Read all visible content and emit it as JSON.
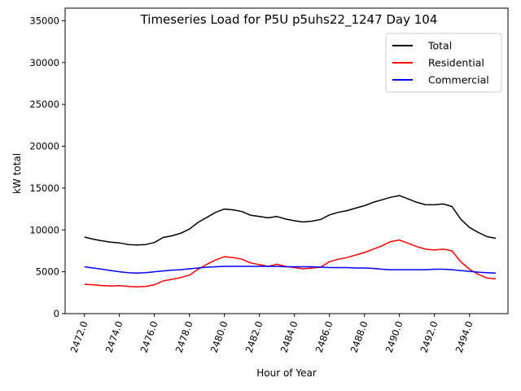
{
  "chart_data": {
    "type": "line",
    "title": "Timeseries Load for P5U p5uhs22_1247  Day 104",
    "xlabel": "Hour of Year",
    "ylabel": "kW total",
    "xlim": [
      2470.9,
      2496.2
    ],
    "ylim": [
      0,
      36500
    ],
    "xticks": [
      2472.0,
      2474.0,
      2476.0,
      2478.0,
      2480.0,
      2482.0,
      2484.0,
      2486.0,
      2488.0,
      2490.0,
      2492.0,
      2494.0
    ],
    "xtick_labels": [
      "2472.0",
      "2474.0",
      "2476.0",
      "2478.0",
      "2480.0",
      "2482.0",
      "2484.0",
      "2486.0",
      "2488.0",
      "2490.0",
      "2492.0",
      "2494.0"
    ],
    "yticks": [
      0,
      5000,
      10000,
      15000,
      20000,
      25000,
      30000,
      35000
    ],
    "ytick_labels": [
      "0",
      "5000",
      "10000",
      "15000",
      "20000",
      "25000",
      "30000",
      "35000"
    ],
    "legend_position": "top-right",
    "x": [
      2472,
      2472.5,
      2473,
      2473.5,
      2474,
      2474.5,
      2475,
      2475.5,
      2476,
      2476.5,
      2477,
      2477.5,
      2478,
      2478.5,
      2479,
      2479.5,
      2480,
      2480.5,
      2481,
      2481.5,
      2482,
      2482.5,
      2483,
      2483.5,
      2484,
      2484.5,
      2485,
      2485.5,
      2486,
      2486.5,
      2487,
      2487.5,
      2488,
      2488.5,
      2489,
      2489.5,
      2490,
      2490.5,
      2491,
      2491.5,
      2492,
      2492.5,
      2493,
      2493.5,
      2494,
      2494.5,
      2495,
      2495.5
    ],
    "series": [
      {
        "name": "Total",
        "color": "#000000",
        "values": [
          9150,
          8900,
          8700,
          8550,
          8450,
          8250,
          8200,
          8250,
          8500,
          9100,
          9300,
          9600,
          10100,
          10900,
          11500,
          12100,
          12500,
          12400,
          12200,
          11750,
          11600,
          11450,
          11600,
          11300,
          11100,
          10950,
          11050,
          11250,
          11800,
          12100,
          12300,
          12600,
          12900,
          13300,
          13600,
          13900,
          14100,
          13700,
          13300,
          13000,
          13000,
          13100,
          12800,
          11300,
          10300,
          9700,
          9200,
          9000
        ]
      },
      {
        "name": "Residential",
        "color": "#ff0000",
        "values": [
          3500,
          3450,
          3350,
          3300,
          3350,
          3250,
          3200,
          3250,
          3450,
          3900,
          4100,
          4300,
          4600,
          5300,
          5900,
          6400,
          6800,
          6700,
          6500,
          6050,
          5850,
          5650,
          5900,
          5650,
          5500,
          5350,
          5450,
          5550,
          6200,
          6500,
          6700,
          7000,
          7300,
          7700,
          8100,
          8600,
          8800,
          8400,
          8000,
          7700,
          7600,
          7700,
          7500,
          6200,
          5300,
          4700,
          4250,
          4150
        ]
      },
      {
        "name": "Commercial",
        "color": "#0000ff",
        "values": [
          5600,
          5450,
          5300,
          5150,
          5000,
          4900,
          4850,
          4900,
          5000,
          5100,
          5200,
          5250,
          5350,
          5450,
          5550,
          5600,
          5650,
          5650,
          5650,
          5650,
          5650,
          5650,
          5650,
          5600,
          5600,
          5600,
          5600,
          5550,
          5500,
          5500,
          5500,
          5450,
          5450,
          5400,
          5300,
          5250,
          5250,
          5250,
          5250,
          5250,
          5300,
          5300,
          5250,
          5150,
          5050,
          4950,
          4900,
          4850
        ]
      }
    ]
  }
}
